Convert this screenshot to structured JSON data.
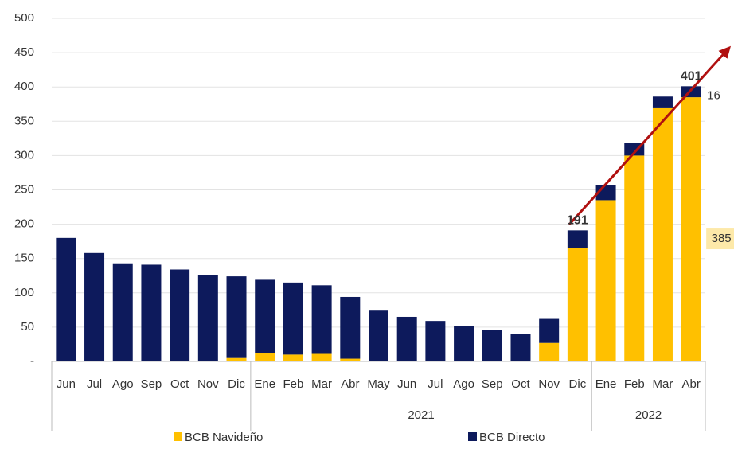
{
  "chart_data": {
    "type": "stacked_bar",
    "category_groups": [
      {
        "name": null,
        "categories": [
          "Jun",
          "Jul",
          "Ago",
          "Sep",
          "Oct",
          "Nov",
          "Dic"
        ]
      },
      {
        "name": "2021",
        "categories": [
          "Ene",
          "Feb",
          "Mar",
          "Abr",
          "May",
          "Jun",
          "Jul",
          "Ago",
          "Sep",
          "Oct",
          "Nov",
          "Dic"
        ]
      },
      {
        "name": "2022",
        "categories": [
          "Ene",
          "Feb",
          "Mar",
          "Abr"
        ]
      }
    ],
    "series": [
      {
        "name": "BCB Navideño",
        "color": "#ffc000",
        "values": [
          0,
          0,
          0,
          0,
          0,
          0,
          5,
          12,
          10,
          11,
          4,
          0,
          0,
          0,
          0,
          0,
          0,
          27,
          165,
          235,
          300,
          369,
          385
        ],
        "value_labels": [
          null,
          null,
          null,
          null,
          null,
          null,
          null,
          null,
          null,
          null,
          null,
          null,
          null,
          null,
          null,
          null,
          null,
          null,
          null,
          null,
          null,
          null,
          "385"
        ]
      },
      {
        "name": "BCB Directo",
        "color": "#0d1a5c",
        "values": [
          180,
          158,
          143,
          141,
          134,
          126,
          119,
          107,
          105,
          100,
          90,
          74,
          65,
          59,
          52,
          46,
          40,
          35,
          26,
          22,
          18,
          17,
          16
        ],
        "value_labels": [
          null,
          null,
          null,
          null,
          null,
          null,
          null,
          null,
          null,
          null,
          null,
          null,
          null,
          null,
          null,
          null,
          null,
          null,
          null,
          null,
          null,
          null,
          "16"
        ]
      }
    ],
    "total_labels": [
      null,
      null,
      null,
      null,
      null,
      null,
      null,
      null,
      null,
      null,
      null,
      null,
      null,
      null,
      null,
      null,
      null,
      null,
      191,
      null,
      null,
      null,
      401
    ],
    "ylim": [
      0,
      500
    ],
    "yticks": [
      {
        "value": 0,
        "label": "-"
      },
      50,
      100,
      150,
      200,
      250,
      300,
      350,
      400,
      450,
      500
    ],
    "grid": true
  }
}
